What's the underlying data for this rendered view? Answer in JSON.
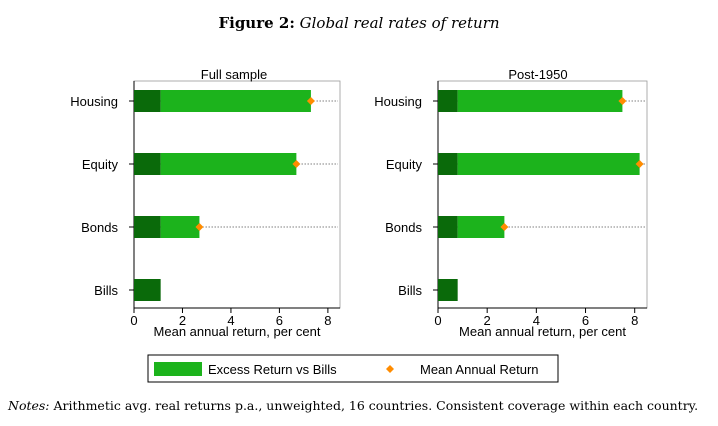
{
  "figure": {
    "label": "Figure 2:",
    "caption": "Global real rates of return"
  },
  "notes": {
    "label": "Notes:",
    "text": "Arithmetic avg. real returns p.a., unweighted, 16 countries. Consistent coverage within each country."
  },
  "colors": {
    "bills_bar": "#0a6a0a",
    "excess_bar": "#1cb31c",
    "mean_marker": "#ff8c00"
  },
  "chart_data": [
    {
      "type": "bar",
      "orientation": "horizontal",
      "title": "Full sample",
      "xlabel": "Mean annual return, per cent",
      "xlim": [
        0,
        8.5
      ],
      "xticks": [
        0,
        2,
        4,
        6,
        8
      ],
      "categories": [
        "Housing",
        "Equity",
        "Bonds",
        "Bills"
      ],
      "series": [
        {
          "name": "",
          "values": [
            1.1,
            1.1,
            1.1,
            1.1
          ]
        },
        {
          "name": "Excess Return vs Bills",
          "values": [
            6.2,
            5.6,
            1.6,
            0
          ]
        },
        {
          "name": "Mean Annual Return",
          "values": [
            7.3,
            6.7,
            2.7,
            1.1
          ]
        }
      ]
    },
    {
      "type": "bar",
      "orientation": "horizontal",
      "title": "Post-1950",
      "xlabel": "Mean annual return, per cent",
      "xlim": [
        0,
        8.5
      ],
      "xticks": [
        0,
        2,
        4,
        6,
        8
      ],
      "categories": [
        "Housing",
        "Equity",
        "Bonds",
        "Bills"
      ],
      "series": [
        {
          "name": "",
          "values": [
            0.8,
            0.8,
            0.8,
            0.8
          ]
        },
        {
          "name": "Excess Return vs Bills",
          "values": [
            6.7,
            7.4,
            1.9,
            0
          ]
        },
        {
          "name": "Mean Annual Return",
          "values": [
            7.5,
            8.2,
            2.7,
            0.8
          ]
        }
      ]
    }
  ],
  "legend": {
    "items": [
      {
        "label": "Excess Return vs Bills"
      },
      {
        "label": "Mean Annual Return"
      }
    ]
  }
}
